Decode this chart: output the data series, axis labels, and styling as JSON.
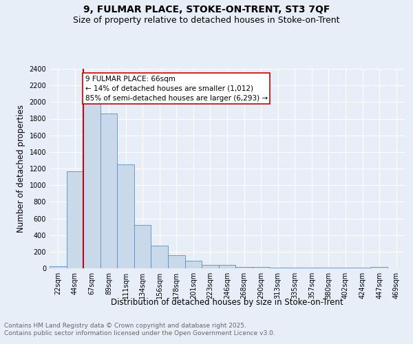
{
  "title1": "9, FULMAR PLACE, STOKE-ON-TRENT, ST3 7QF",
  "title2": "Size of property relative to detached houses in Stoke-on-Trent",
  "xlabel": "Distribution of detached houses by size in Stoke-on-Trent",
  "ylabel": "Number of detached properties",
  "bin_labels": [
    "22sqm",
    "44sqm",
    "67sqm",
    "89sqm",
    "111sqm",
    "134sqm",
    "156sqm",
    "178sqm",
    "201sqm",
    "223sqm",
    "246sqm",
    "268sqm",
    "290sqm",
    "313sqm",
    "335sqm",
    "357sqm",
    "380sqm",
    "402sqm",
    "424sqm",
    "447sqm",
    "469sqm"
  ],
  "bar_heights": [
    25,
    1170,
    2000,
    1860,
    1250,
    520,
    275,
    155,
    90,
    45,
    45,
    20,
    20,
    5,
    5,
    5,
    5,
    5,
    5,
    20,
    0
  ],
  "bar_color": "#c9d9ea",
  "bar_edge_color": "#5b8ec4",
  "subject_line_color": "#cc0000",
  "annotation_text": "9 FULMAR PLACE: 66sqm\n← 14% of detached houses are smaller (1,012)\n85% of semi-detached houses are larger (6,293) →",
  "annotation_box_color": "#ffffff",
  "annotation_box_edge": "#cc0000",
  "ylim": [
    0,
    2400
  ],
  "yticks": [
    0,
    200,
    400,
    600,
    800,
    1000,
    1200,
    1400,
    1600,
    1800,
    2000,
    2200,
    2400
  ],
  "footer1": "Contains HM Land Registry data © Crown copyright and database right 2025.",
  "footer2": "Contains public sector information licensed under the Open Government Licence v3.0.",
  "bg_color": "#e8eef7",
  "grid_color": "#ffffff",
  "title_fontsize": 10,
  "subtitle_fontsize": 9,
  "axis_label_fontsize": 8.5,
  "tick_fontsize": 7,
  "annotation_fontsize": 7.5,
  "footer_fontsize": 6.5
}
